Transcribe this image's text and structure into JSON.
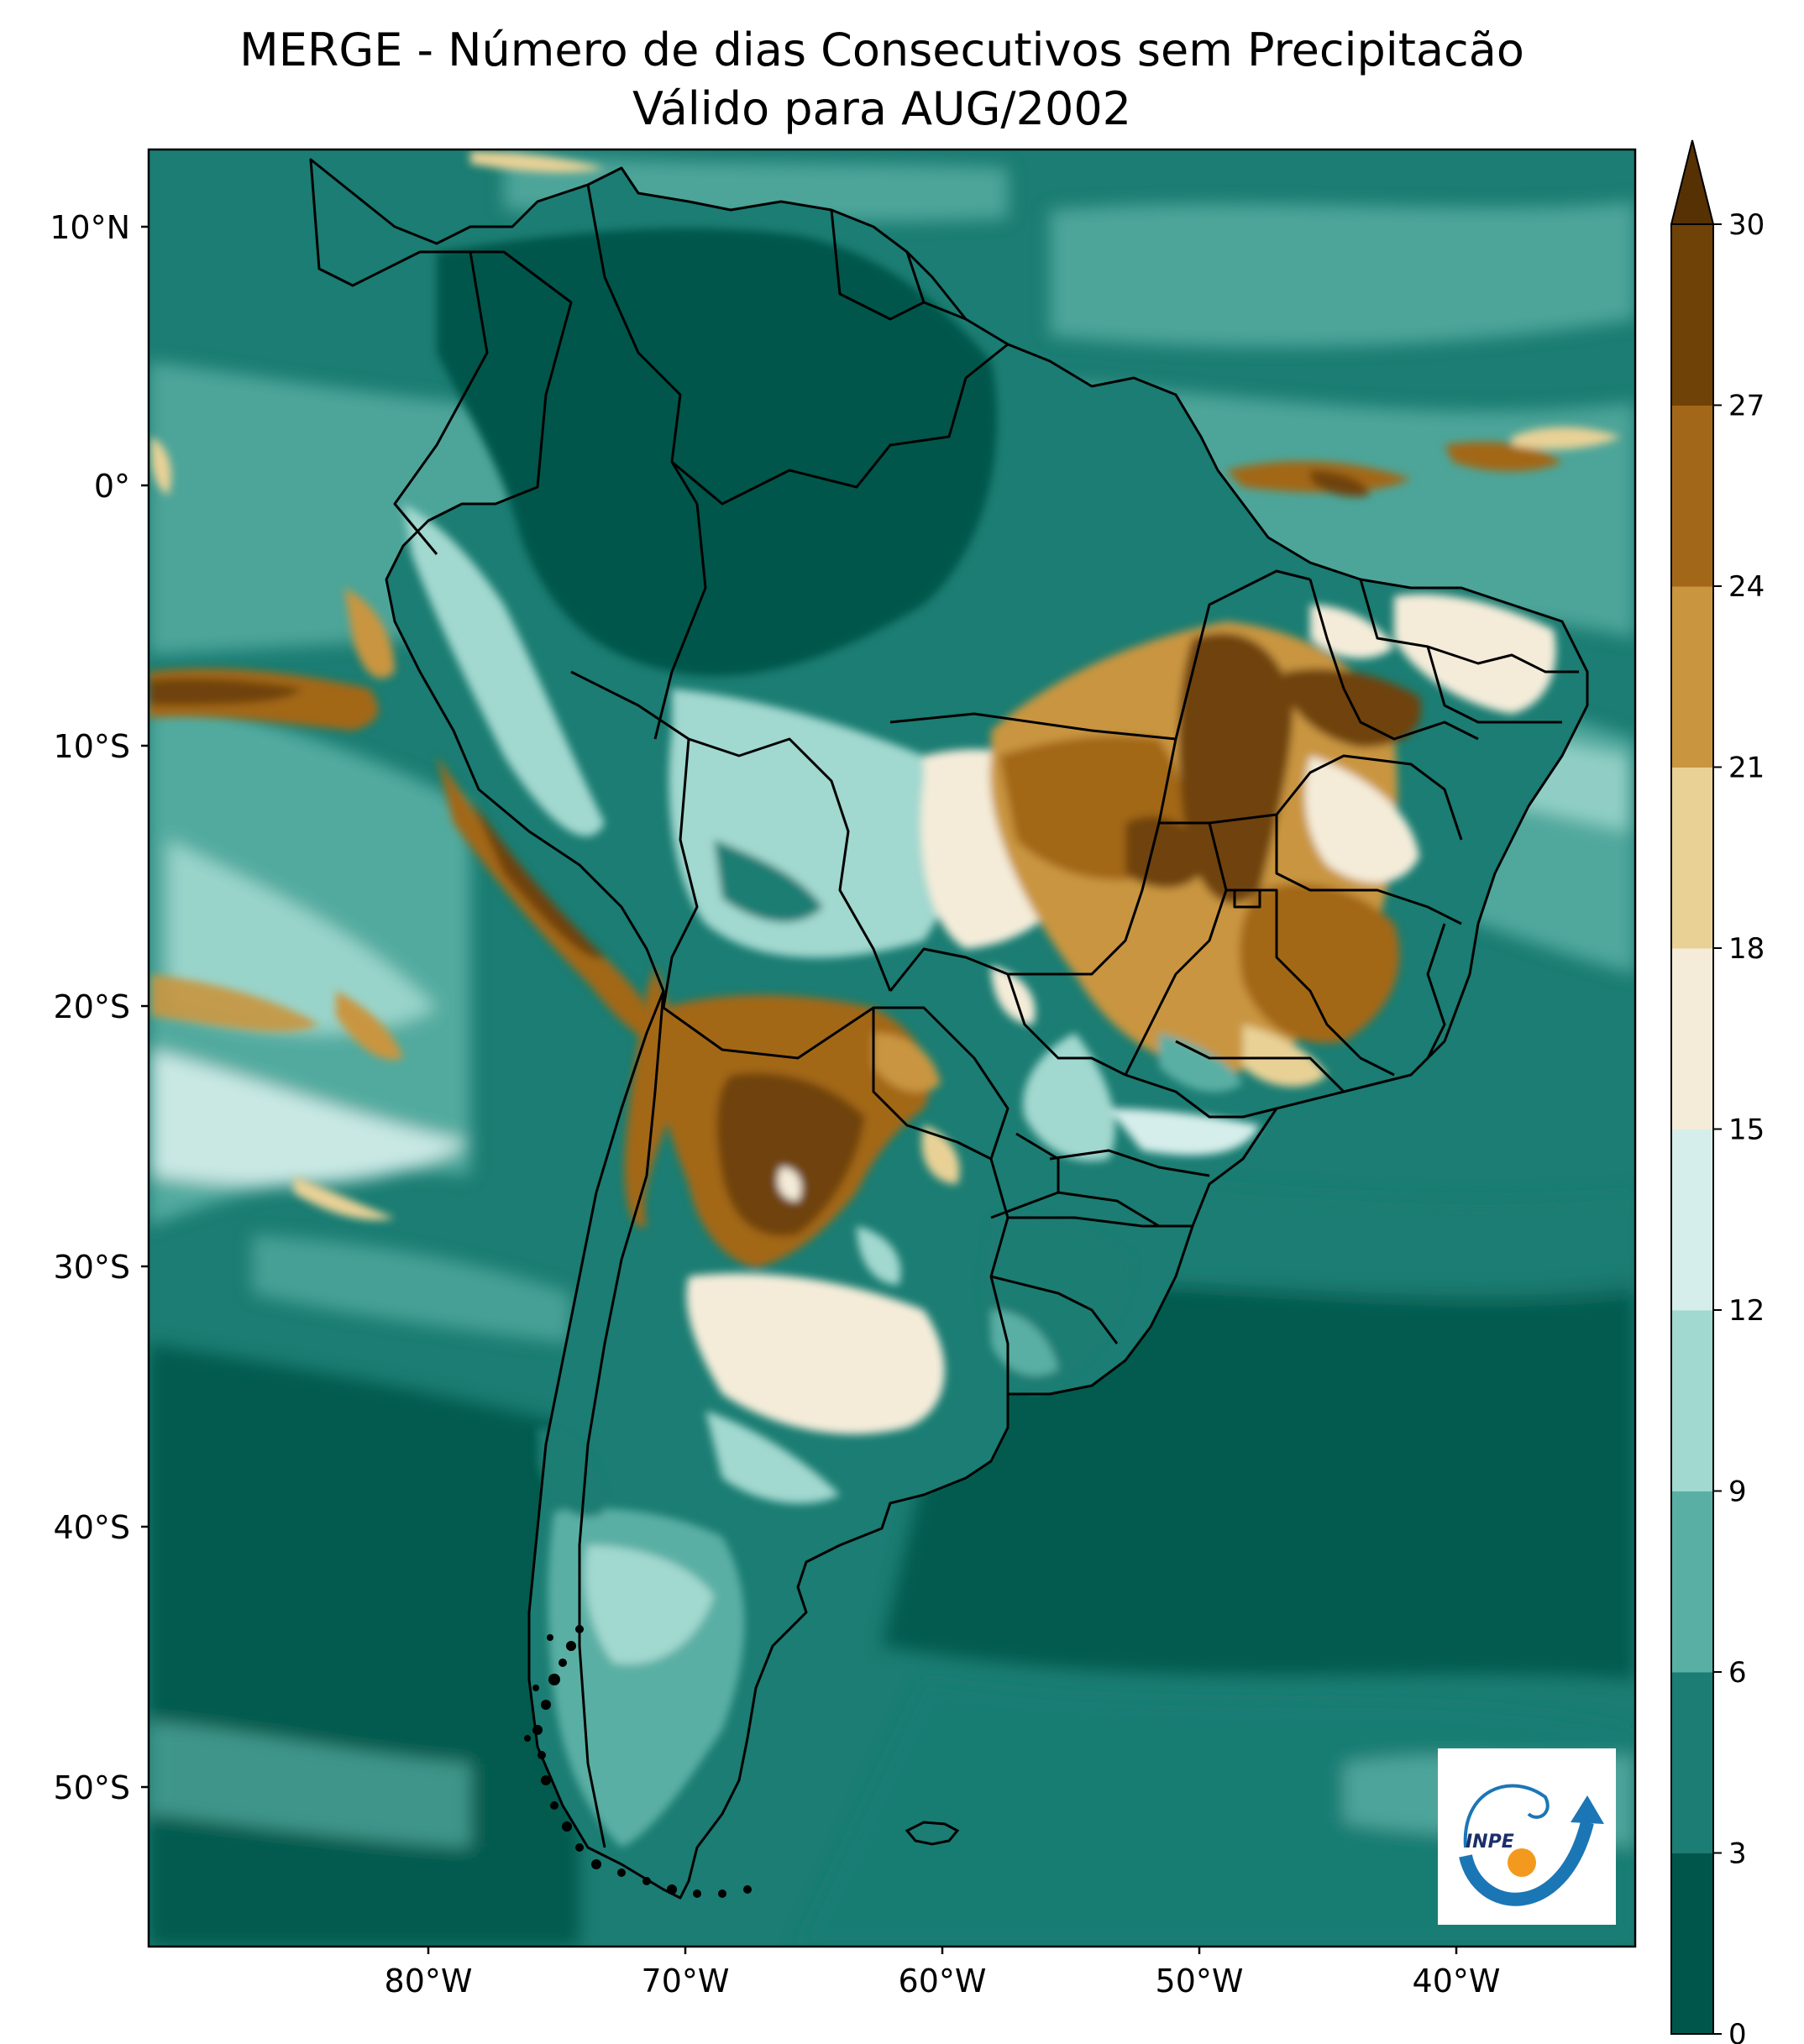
{
  "title": {
    "line1": "MERGE - Número de dias Consecutivos sem Precipitacão",
    "line2": "Válido para AUG/2002"
  },
  "axes": {
    "lat_ticks": [
      "10°N",
      "0°",
      "10°S",
      "20°S",
      "30°S",
      "40°S",
      "50°S"
    ],
    "lon_ticks": [
      "80°W",
      "70°W",
      "60°W",
      "50°W",
      "40°W"
    ]
  },
  "colorbar": {
    "ticks": [
      "0",
      "3",
      "6",
      "9",
      "12",
      "15",
      "18",
      "21",
      "24",
      "27",
      "30"
    ],
    "colors": [
      "#01564b",
      "#1b7d73",
      "#5aafa4",
      "#a1d8cf",
      "#d6eeeb",
      "#f4ecd9",
      "#e9d196",
      "#c9953f",
      "#a36719",
      "#6f4208"
    ],
    "extend_color": "#563104"
  },
  "logo": {
    "text": "INPE",
    "accent_blue": "#1b76b6",
    "accent_orange": "#f39a1e"
  },
  "colors": {
    "ocean_dark": "#01564b",
    "ocean_mid": "#1b7d73",
    "border": "#000000"
  }
}
